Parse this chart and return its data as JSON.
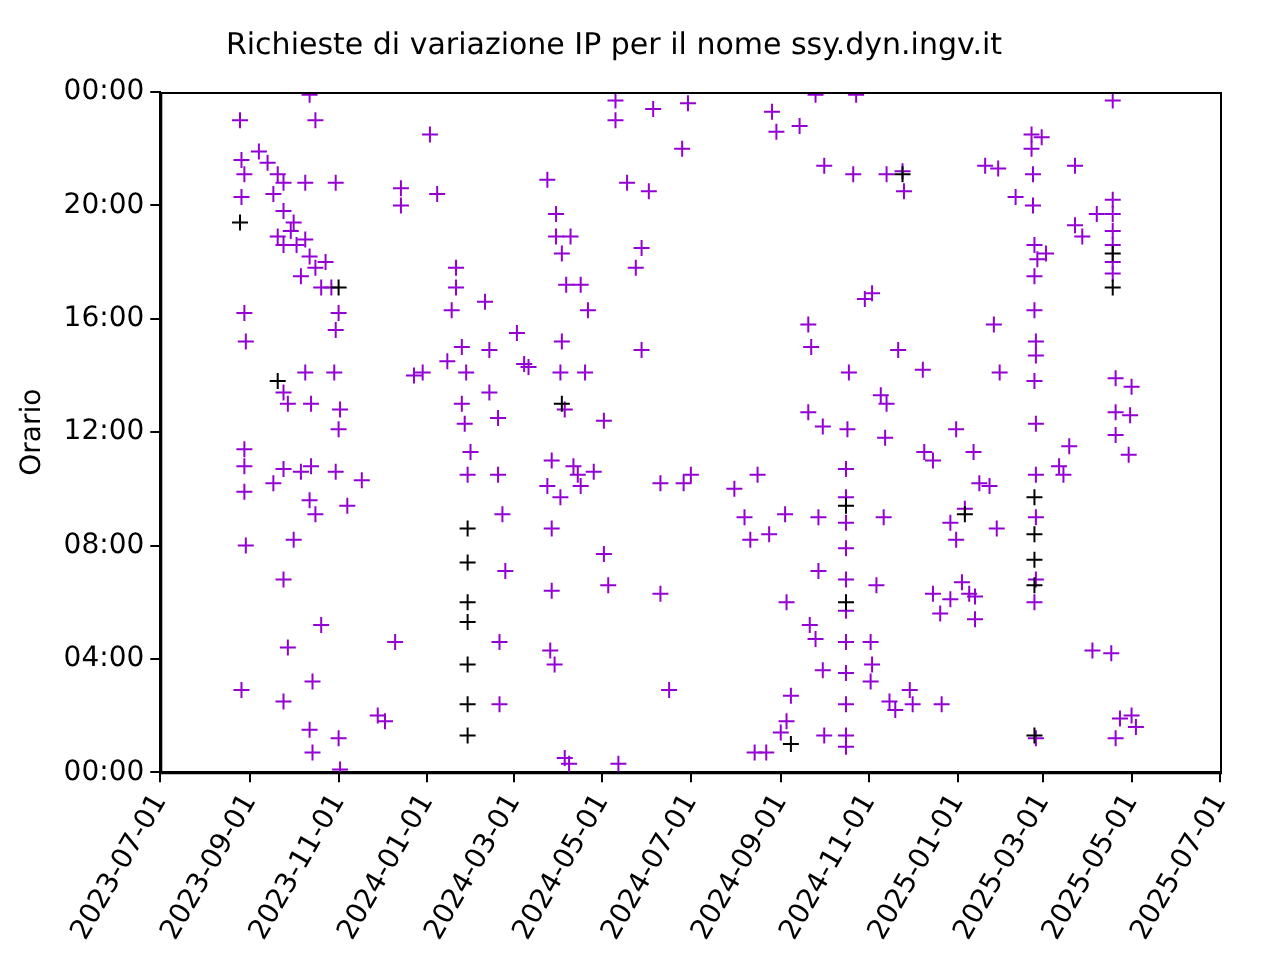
{
  "chart_data": {
    "type": "scatter",
    "title": "Richieste di variazione IP per il nome ssy.dyn.ingv.it",
    "ylabel": "Orario",
    "marker": "cross",
    "grid": false,
    "legend": false,
    "xlim": [
      "2023-07-01",
      "2025-07-01"
    ],
    "xticks": [
      "2023-07-01",
      "2023-09-01",
      "2023-11-01",
      "2024-01-01",
      "2024-03-01",
      "2024-05-01",
      "2024-07-01",
      "2024-09-01",
      "2024-11-01",
      "2025-01-01",
      "2025-03-01",
      "2025-05-01",
      "2025-07-01"
    ],
    "ylim": [
      0,
      24
    ],
    "yticks": [
      {
        "value": 0,
        "label": "00:00"
      },
      {
        "value": 4,
        "label": "04:00"
      },
      {
        "value": 8,
        "label": "08:00"
      },
      {
        "value": 12,
        "label": "12:00"
      },
      {
        "value": 16,
        "label": "16:00"
      },
      {
        "value": 20,
        "label": "20:00"
      },
      {
        "value": 24,
        "label": "00:00"
      }
    ],
    "series": [
      {
        "color": "#9400d3",
        "x": [
          "2023-08-25",
          "2023-08-26",
          "2023-08-28",
          "2023-08-26",
          "2023-08-28",
          "2023-08-29",
          "2023-08-28",
          "2023-08-28",
          "2023-08-28",
          "2023-08-29",
          "2023-08-26",
          "2023-09-20",
          "2023-09-24",
          "2023-09-29",
          "2023-10-03",
          "2023-10-09",
          "2023-10-12",
          "2023-10-16",
          "2023-10-06",
          "2023-10-01",
          "2023-09-24",
          "2023-10-20",
          "2023-10-23",
          "2023-09-07",
          "2023-09-13",
          "2023-09-20",
          "2023-09-24",
          "2023-09-17",
          "2023-09-24",
          "2023-09-27",
          "2023-10-09",
          "2023-10-13",
          "2023-09-17",
          "2023-09-24",
          "2023-10-01",
          "2023-10-12",
          "2023-10-13",
          "2023-10-16",
          "2023-10-06",
          "2023-09-27",
          "2023-09-24",
          "2023-10-14",
          "2023-10-12",
          "2023-10-14",
          "2023-11-01",
          "2023-11-02",
          "2023-09-24",
          "2023-10-20",
          "2023-10-12",
          "2023-10-16",
          "2023-10-09",
          "2023-10-30",
          "2023-10-27",
          "2023-11-01",
          "2023-10-30",
          "2023-10-29",
          "2023-11-02",
          "2023-11-01",
          "2023-10-30",
          "2023-11-17",
          "2023-11-07",
          "2023-11-28",
          "2023-12-03",
          "2023-12-10",
          "2023-12-23",
          "2023-12-29",
          "2024-01-03",
          "2024-01-08",
          "2023-12-14",
          "2023-12-14",
          "2024-01-28",
          "2024-01-25",
          "2024-01-27",
          "2024-01-29",
          "2024-01-31",
          "2024-01-21",
          "2024-01-21",
          "2024-01-18",
          "2024-01-25",
          "2024-01-15",
          "2024-02-10",
          "2024-02-13",
          "2024-02-13",
          "2024-02-19",
          "2024-02-19",
          "2024-02-22",
          "2024-02-24",
          "2024-02-20",
          "2024-02-20",
          "2024-03-03",
          "2024-03-08",
          "2024-03-11",
          "2024-03-24",
          "2024-03-30",
          "2024-03-30",
          "2024-04-03",
          "2024-04-09",
          "2024-04-06",
          "2024-04-03",
          "2024-04-02",
          "2024-04-05",
          "2024-03-27",
          "2024-03-24",
          "2024-04-02",
          "2024-04-11",
          "2024-04-14",
          "2024-03-27",
          "2024-03-27",
          "2024-03-26",
          "2024-03-29",
          "2024-04-05",
          "2024-04-08",
          "2024-04-16",
          "2024-04-21",
          "2024-04-19",
          "2024-04-16",
          "2024-04-25",
          "2024-05-02",
          "2024-05-02",
          "2024-05-05",
          "2024-05-12",
          "2024-05-10",
          "2024-05-10",
          "2024-05-18",
          "2024-05-28",
          "2024-06-05",
          "2024-06-02",
          "2024-05-28",
          "2024-05-24",
          "2024-06-10",
          "2024-06-10",
          "2024-06-16",
          "2024-06-26",
          "2024-07-01",
          "2024-06-25",
          "2024-06-29",
          "2024-07-31",
          "2024-08-07",
          "2024-08-11",
          "2024-08-16",
          "2024-08-24",
          "2024-09-04",
          "2024-09-05",
          "2024-09-08",
          "2024-08-14",
          "2024-08-22",
          "2024-09-01",
          "2024-09-05",
          "2024-08-26",
          "2024-08-29",
          "2024-09-14",
          "2024-09-25",
          "2024-10-01",
          "2024-09-20",
          "2024-09-22",
          "2024-09-20",
          "2024-09-30",
          "2024-09-27",
          "2024-09-27",
          "2024-09-21",
          "2024-09-25",
          "2024-09-30",
          "2024-10-01",
          "2024-10-16",
          "2024-10-16",
          "2024-10-16",
          "2024-10-16",
          "2024-10-16",
          "2024-10-16",
          "2024-10-16",
          "2024-10-16",
          "2024-10-16",
          "2024-10-16",
          "2024-10-16",
          "2024-10-17",
          "2024-10-18",
          "2024-10-21",
          "2024-10-23",
          "2024-10-29",
          "2024-11-03",
          "2024-11-09",
          "2024-11-13",
          "2024-11-12",
          "2024-11-11",
          "2024-11-06",
          "2024-11-02",
          "2024-11-03",
          "2024-11-02",
          "2024-11-15",
          "2024-11-19",
          "2024-11-13",
          "2024-11-24",
          "2024-11-25",
          "2024-11-21",
          "2024-12-08",
          "2024-12-09",
          "2024-12-15",
          "2024-12-15",
          "2024-12-20",
          "2024-12-27",
          "2024-12-31",
          "2025-01-13",
          "2025-01-13",
          "2024-12-21",
          "2024-11-29",
          "2024-12-01",
          "2025-02-21",
          "2025-02-21",
          "2025-02-22",
          "2025-02-22",
          "2025-02-23",
          "2025-02-23",
          "2025-02-23",
          "2025-02-24",
          "2025-02-24",
          "2025-02-23",
          "2025-02-24",
          "2025-02-24",
          "2025-02-24",
          "2025-02-24",
          "2025-02-23",
          "2025-02-24",
          "2025-02-10",
          "2025-01-29",
          "2025-01-20",
          "2025-01-26",
          "2025-01-30",
          "2025-01-09",
          "2025-01-16",
          "2025-01-06",
          "2024-12-27",
          "2024-12-31",
          "2025-01-23",
          "2025-01-28",
          "2025-01-12",
          "2025-01-04",
          "2025-03-12",
          "2025-03-19",
          "2025-03-23",
          "2025-03-23",
          "2025-03-28",
          "2025-04-07",
          "2025-04-18",
          "2025-04-29",
          "2025-05-01",
          "2025-04-30",
          "2025-05-01",
          "2025-05-04",
          "2025-04-17",
          "2025-04-04",
          "2025-02-28",
          "2025-02-25",
          "2025-03-03",
          "2025-03-15",
          "2025-04-18",
          "2025-04-18",
          "2025-04-18",
          "2025-04-18",
          "2025-04-18",
          "2025-04-18",
          "2025-04-20",
          "2025-04-20",
          "2025-04-20",
          "2025-04-23",
          "2025-04-20"
        ],
        "values": [
          23.0,
          21.6,
          21.1,
          20.3,
          16.2,
          15.2,
          11.4,
          10.8,
          9.9,
          8.0,
          2.9,
          18.9,
          18.6,
          19.1,
          18.6,
          18.8,
          18.2,
          17.8,
          17.5,
          19.4,
          19.8,
          17.1,
          18.0,
          21.9,
          21.5,
          21.1,
          20.8,
          20.4,
          13.4,
          13.0,
          14.1,
          13.0,
          10.2,
          10.7,
          8.2,
          9.6,
          10.8,
          9.1,
          10.6,
          4.4,
          2.5,
          3.2,
          1.5,
          0.7,
          1.2,
          0.1,
          6.8,
          5.2,
          23.9,
          23.0,
          20.8,
          20.8,
          17.1,
          16.2,
          15.6,
          14.1,
          12.8,
          12.1,
          10.6,
          10.3,
          9.4,
          2.0,
          1.8,
          4.6,
          14.0,
          14.1,
          22.5,
          20.4,
          20.6,
          20.0,
          14.1,
          13.0,
          12.3,
          10.5,
          11.3,
          17.8,
          17.1,
          16.3,
          15.0,
          14.5,
          16.6,
          14.9,
          13.4,
          12.5,
          10.5,
          9.1,
          7.1,
          4.6,
          2.4,
          15.5,
          14.4,
          14.3,
          20.9,
          19.7,
          18.9,
          18.3,
          18.9,
          17.2,
          15.2,
          14.1,
          12.8,
          11.0,
          10.1,
          9.7,
          10.8,
          10.5,
          8.6,
          6.4,
          4.3,
          3.8,
          0.5,
          0.3,
          17.2,
          16.3,
          14.1,
          10.1,
          10.6,
          12.4,
          7.7,
          6.6,
          0.3,
          23.7,
          23.0,
          20.8,
          14.9,
          23.4,
          20.5,
          18.5,
          17.8,
          10.2,
          6.3,
          2.9,
          10.2,
          10.5,
          22.0,
          23.6,
          10.0,
          9.0,
          8.2,
          10.5,
          8.4,
          9.1,
          6.0,
          2.7,
          0.7,
          0.7,
          1.4,
          1.8,
          23.3,
          22.6,
          22.8,
          23.9,
          21.4,
          15.8,
          15.0,
          12.7,
          12.2,
          9.0,
          7.1,
          5.2,
          4.7,
          3.6,
          1.3,
          10.7,
          9.7,
          8.8,
          7.9,
          6.8,
          5.7,
          4.6,
          3.5,
          2.4,
          1.3,
          0.9,
          12.1,
          14.1,
          21.1,
          23.9,
          16.7,
          16.9,
          13.3,
          13.0,
          11.8,
          9.0,
          6.6,
          4.6,
          3.8,
          3.2,
          2.5,
          2.2,
          21.1,
          21.2,
          20.5,
          14.9,
          14.2,
          11.3,
          11.0,
          6.3,
          5.6,
          6.1,
          12.1,
          5.4,
          6.2,
          2.4,
          2.9,
          2.4,
          22.5,
          22.0,
          21.1,
          20.0,
          18.6,
          17.5,
          16.3,
          15.2,
          14.7,
          13.8,
          12.3,
          10.5,
          9.0,
          6.8,
          6.0,
          1.2,
          20.3,
          21.3,
          21.4,
          15.8,
          14.1,
          6.3,
          10.2,
          9.3,
          8.8,
          8.2,
          10.1,
          8.6,
          11.3,
          6.7,
          10.8,
          11.5,
          21.4,
          19.3,
          18.9,
          19.7,
          23.7,
          11.2,
          13.6,
          12.6,
          2.0,
          1.6,
          4.2,
          4.3,
          22.4,
          18.1,
          18.3,
          10.5,
          20.2,
          19.7,
          19.1,
          18.6,
          18.0,
          17.6,
          13.9,
          12.7,
          11.9,
          1.9,
          1.2
        ]
      },
      {
        "color": "#000000",
        "x": [
          "2024-01-29",
          "2024-01-29",
          "2024-01-29",
          "2024-01-29",
          "2024-01-29",
          "2024-01-29",
          "2024-01-29",
          "2023-08-25",
          "2023-09-20",
          "2023-11-01",
          "2024-04-03",
          "2024-10-16",
          "2024-10-16",
          "2025-02-23",
          "2025-02-23",
          "2025-02-23",
          "2025-02-23",
          "2025-02-23",
          "2025-04-18",
          "2025-04-18",
          "2025-01-06",
          "2024-11-24",
          "2024-09-08"
        ],
        "values": [
          8.6,
          7.4,
          6.0,
          5.3,
          3.8,
          2.4,
          1.3,
          19.4,
          13.8,
          17.1,
          13.0,
          9.4,
          6.0,
          9.7,
          8.4,
          7.5,
          6.6,
          1.3,
          17.1,
          18.3,
          9.1,
          21.1,
          1.0
        ]
      }
    ]
  }
}
